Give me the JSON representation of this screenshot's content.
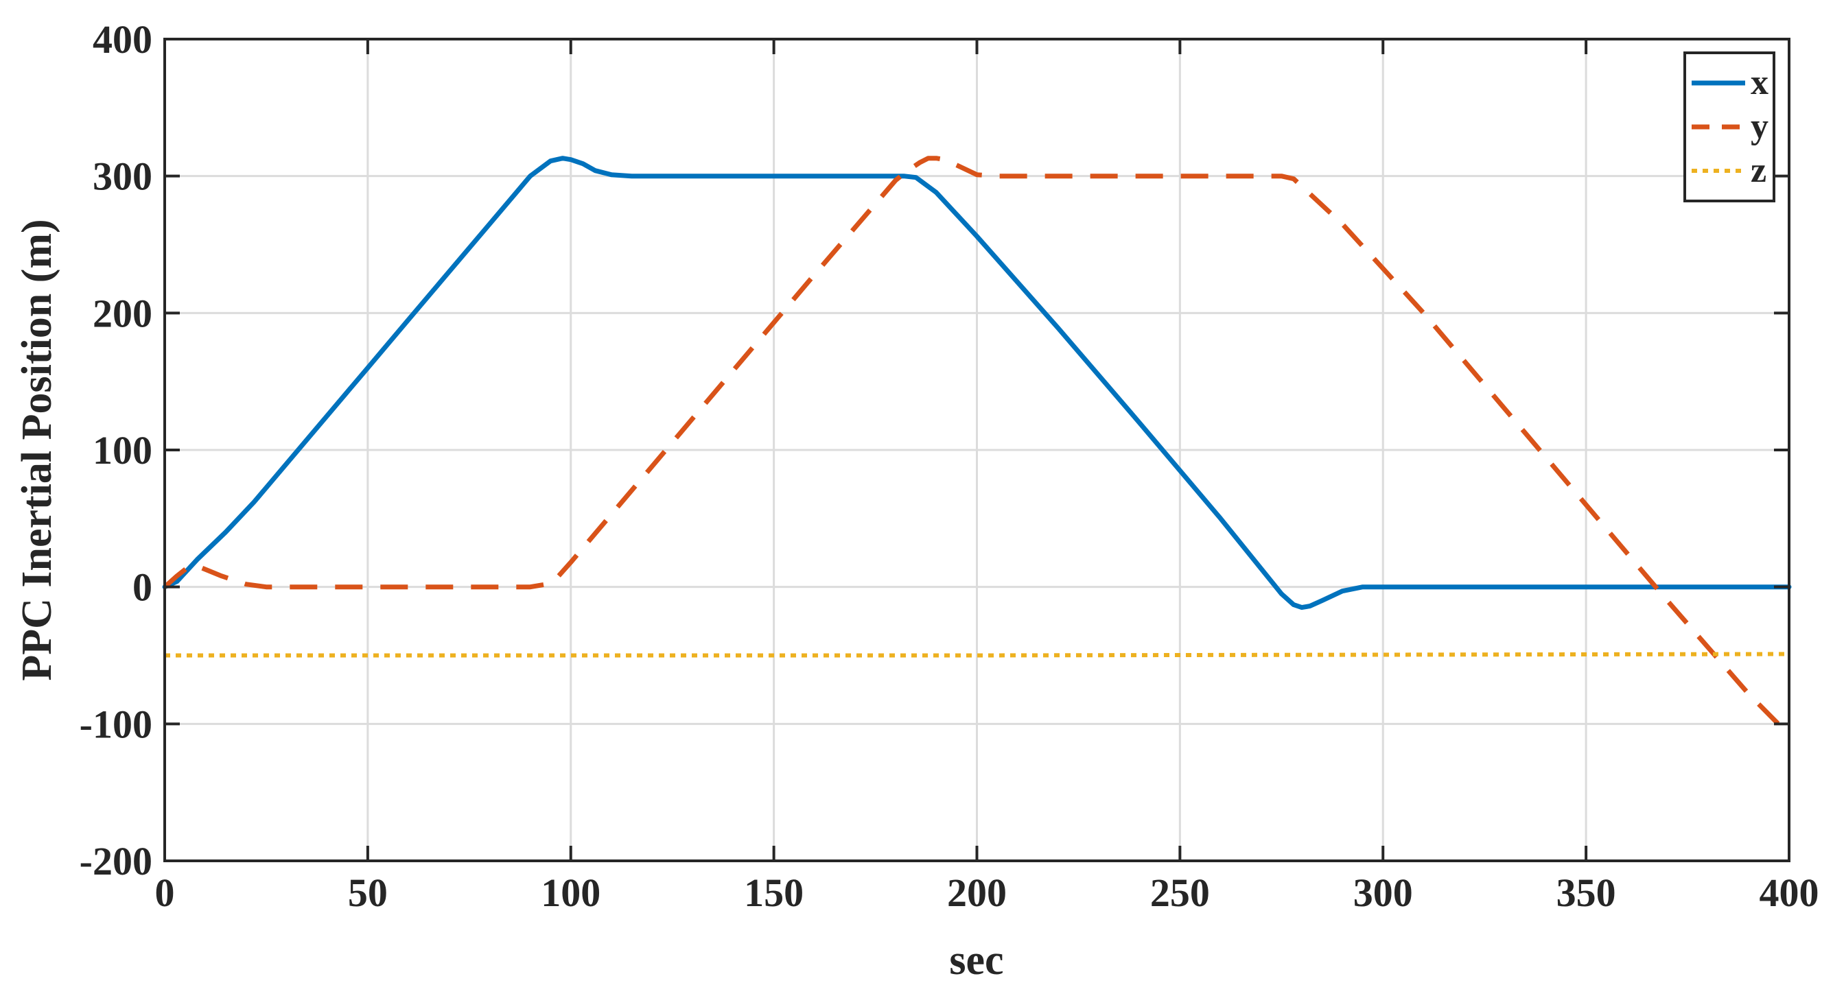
{
  "chart_data": {
    "type": "line",
    "title": "",
    "xlabel": "sec",
    "ylabel": "PPC Inertial Position (m)",
    "xlim": [
      0,
      400
    ],
    "ylim": [
      -200,
      400
    ],
    "xticks": [
      "0",
      "50",
      "100",
      "150",
      "200",
      "250",
      "300",
      "350",
      "400"
    ],
    "yticks": [
      "400",
      "300",
      "200",
      "100",
      "0",
      "-100",
      "-200"
    ],
    "grid": true,
    "legend_position": "top-right",
    "series": [
      {
        "name": "x",
        "color": "#0072BD",
        "style": "solid",
        "x": [
          0,
          3,
          8,
          15,
          22,
          30,
          40,
          50,
          60,
          70,
          80,
          90,
          95,
          98,
          100,
          103,
          106,
          110,
          115,
          130,
          150,
          170,
          182,
          185,
          190,
          200,
          220,
          240,
          260,
          275,
          278,
          280,
          282,
          285,
          290,
          295,
          300,
          320,
          350,
          380,
          400
        ],
        "y": [
          0,
          4,
          20,
          40,
          62,
          90,
          125,
          160,
          195,
          230,
          265,
          300,
          311,
          313,
          312,
          309,
          304,
          301,
          300,
          300,
          300,
          300,
          300,
          299,
          288,
          256,
          189,
          120,
          50,
          -5,
          -13,
          -15,
          -14,
          -10,
          -3,
          0,
          0,
          0,
          0,
          0,
          0
        ]
      },
      {
        "name": "y",
        "color": "#D95319",
        "style": "dashed",
        "x": [
          0,
          3,
          6,
          9,
          14,
          20,
          25,
          30,
          50,
          70,
          90,
          94,
          97,
          100,
          120,
          140,
          160,
          180,
          183,
          186,
          188,
          190,
          192,
          195,
          200,
          205,
          220,
          250,
          270,
          275,
          278,
          290,
          310,
          330,
          350,
          370,
          390,
          400
        ],
        "y": [
          0,
          8,
          15,
          14,
          8,
          2,
          0,
          0,
          0,
          0,
          0,
          2,
          8,
          18,
          88,
          158,
          228,
          297,
          304,
          310,
          313,
          313,
          312,
          308,
          301,
          300,
          300,
          300,
          300,
          300,
          298,
          265,
          200,
          130,
          60,
          -10,
          -78,
          -108
        ]
      },
      {
        "name": "z",
        "color": "#EDB120",
        "style": "dotted",
        "x": [
          0,
          100,
          200,
          300,
          400
        ],
        "y": [
          -50,
          -50,
          -50,
          -49.5,
          -49
        ]
      }
    ]
  }
}
